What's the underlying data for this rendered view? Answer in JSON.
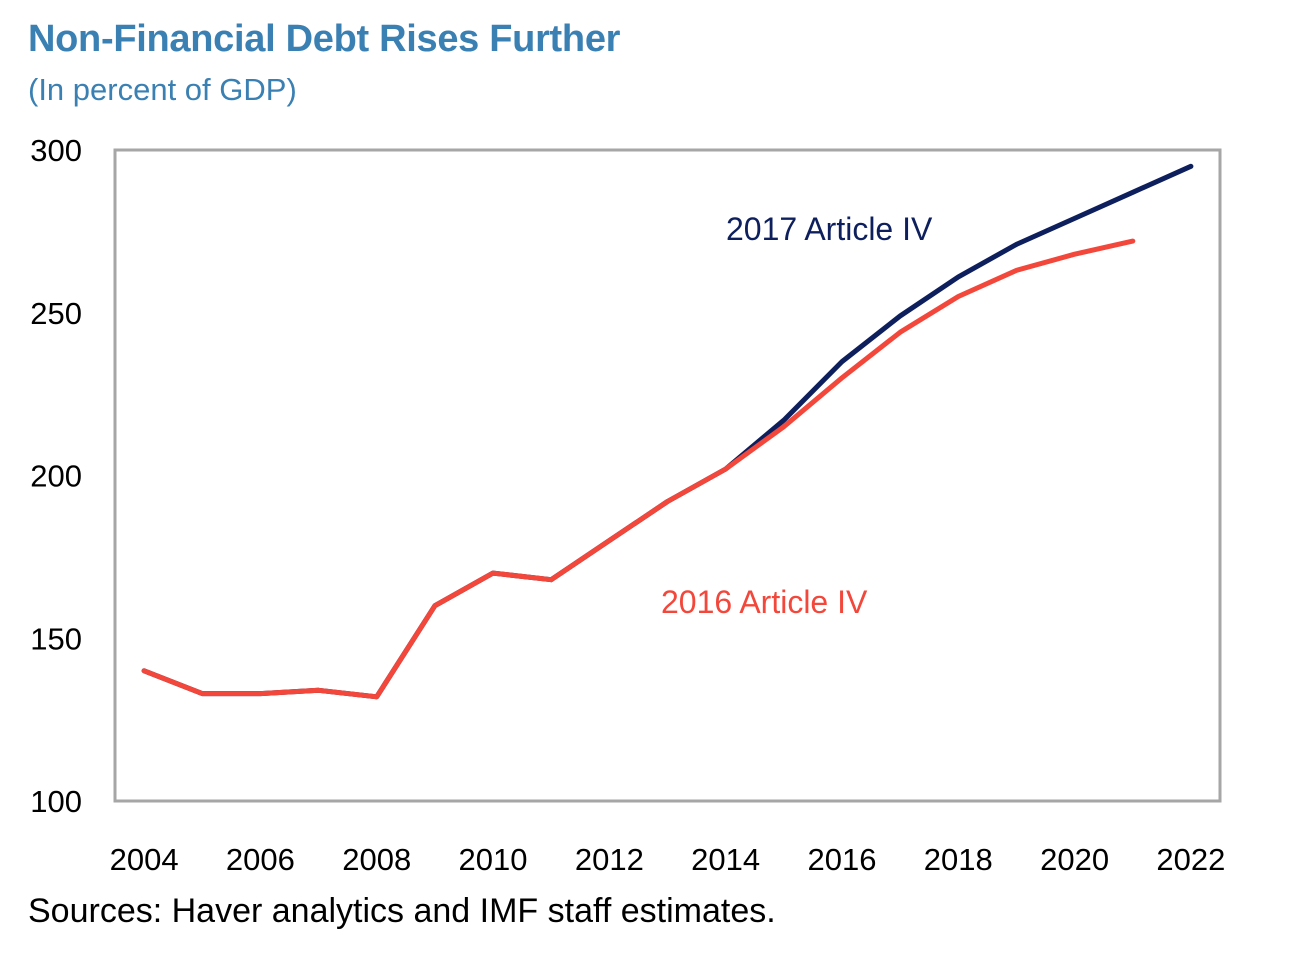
{
  "chart_data": {
    "type": "line",
    "title": "Non-Financial Debt Rises Further",
    "subtitle": "(In percent of GDP)",
    "xlabel": "",
    "ylabel": "",
    "xlim": [
      2003.5,
      2022.5
    ],
    "ylim": [
      100,
      300
    ],
    "x_ticks": [
      2004,
      2006,
      2008,
      2010,
      2012,
      2014,
      2016,
      2018,
      2020,
      2022
    ],
    "y_ticks": [
      100,
      150,
      200,
      250,
      300
    ],
    "grid": false,
    "series": [
      {
        "name": "2017 Article IV",
        "color": "#0d1f5c",
        "x": [
          2004,
          2005,
          2006,
          2007,
          2008,
          2009,
          2010,
          2011,
          2012,
          2013,
          2014,
          2015,
          2016,
          2017,
          2018,
          2019,
          2020,
          2021,
          2022
        ],
        "values": [
          140,
          133,
          133,
          134,
          132,
          160,
          170,
          168,
          180,
          192,
          202,
          217,
          235,
          249,
          261,
          271,
          279,
          287,
          295
        ]
      },
      {
        "name": "2016 Article IV",
        "color": "#f2473a",
        "x": [
          2004,
          2005,
          2006,
          2007,
          2008,
          2009,
          2010,
          2011,
          2012,
          2013,
          2014,
          2015,
          2016,
          2017,
          2018,
          2019,
          2020,
          2021
        ],
        "values": [
          140,
          133,
          133,
          134,
          132,
          160,
          170,
          168,
          180,
          192,
          202,
          215,
          230,
          244,
          255,
          263,
          268,
          272
        ]
      }
    ]
  },
  "source": "Sources: Haver analytics and IMF staff estimates."
}
